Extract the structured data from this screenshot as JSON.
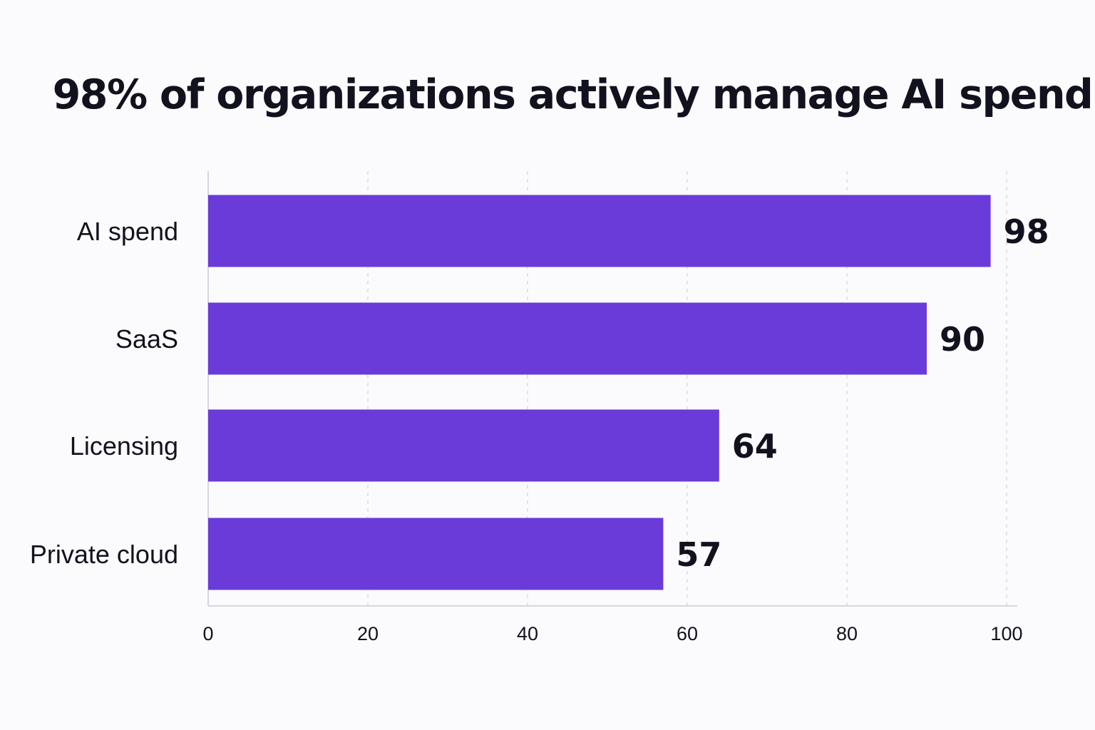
{
  "chart_data": {
    "type": "bar",
    "orientation": "horizontal",
    "title": "98% of organizations actively manage AI spend",
    "categories": [
      "AI spend",
      "SaaS",
      "Licensing",
      "Private cloud"
    ],
    "values": [
      98,
      90,
      64,
      57
    ],
    "value_labels": [
      "98",
      "90",
      "64",
      "57"
    ],
    "xlim": [
      0,
      100
    ],
    "xticks": [
      0,
      20,
      40,
      60,
      80,
      100
    ],
    "xtick_labels": [
      "0",
      "20",
      "40",
      "60",
      "80",
      "100"
    ],
    "grid": "vertical dashed",
    "legend": "none",
    "bar_color": "#6a3bd8",
    "grid_color": "#d9d9e3",
    "axis_color": "#d6d6e2"
  }
}
